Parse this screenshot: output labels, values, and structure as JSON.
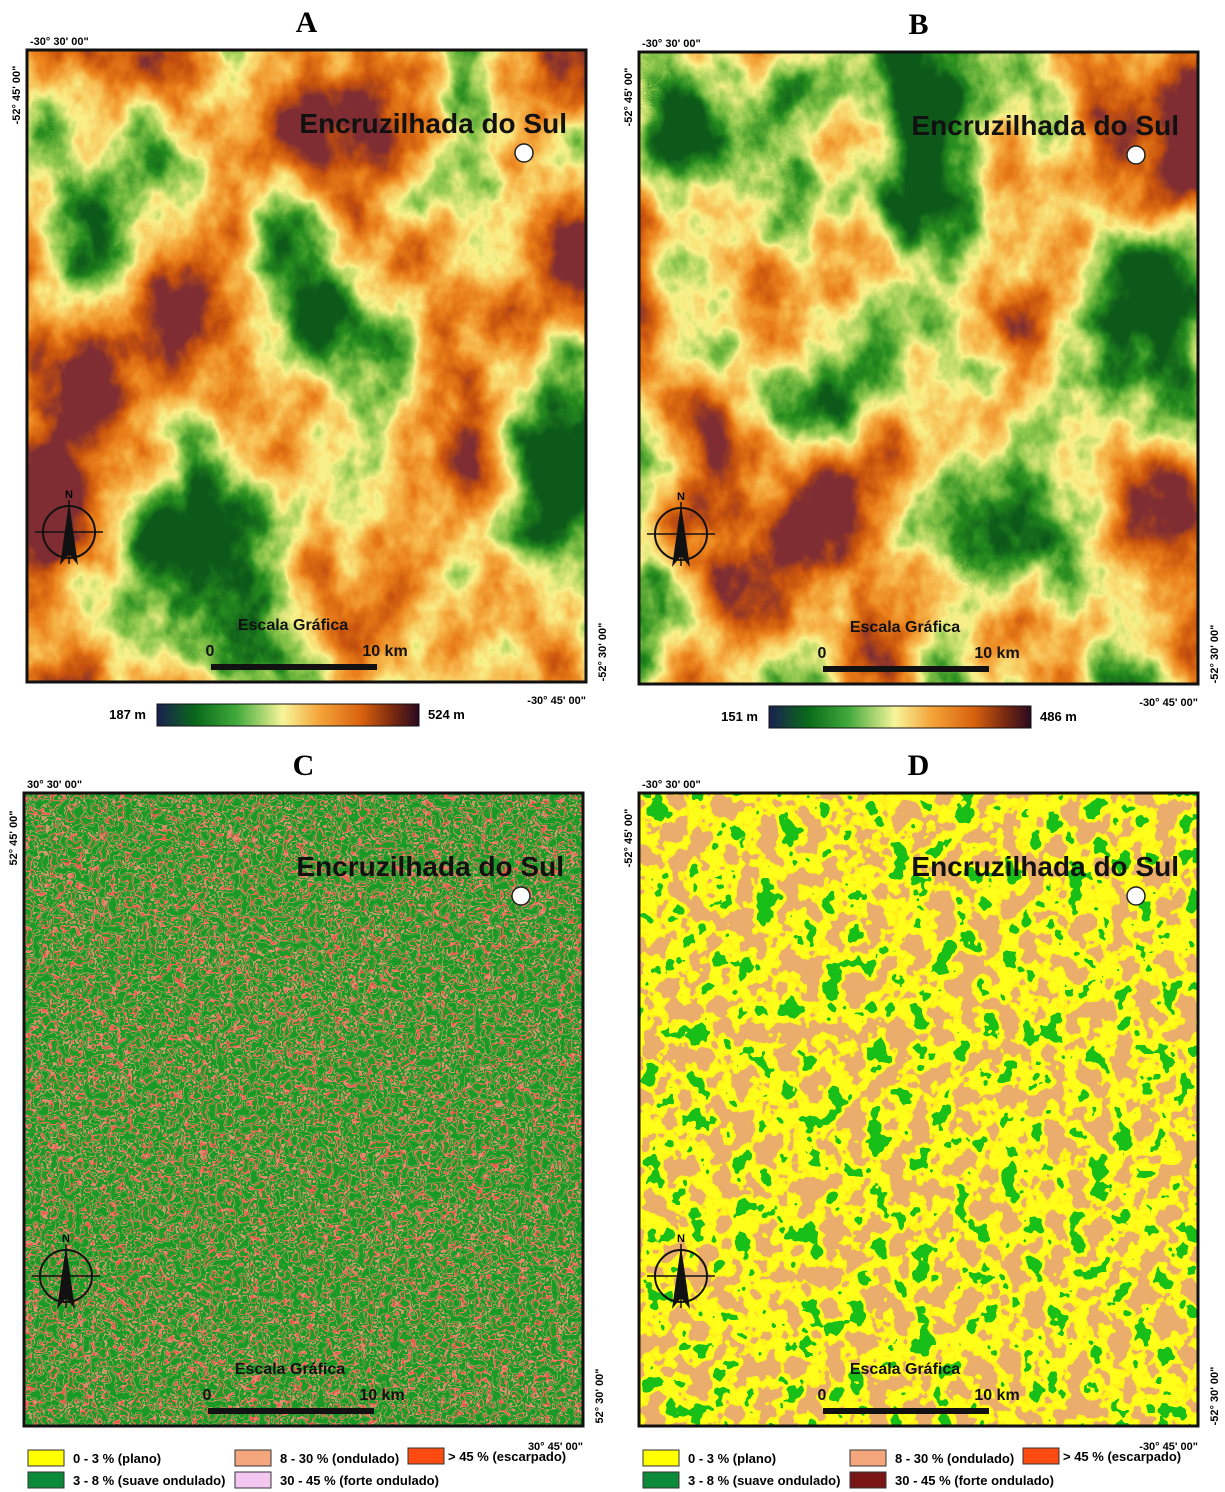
{
  "panels": [
    {
      "letter": "A",
      "kind": "elevation",
      "coord_top": "-30° 30' 00\"",
      "coord_left": "-52° 45' 00\"",
      "coord_right": "-52° 30' 00\"",
      "coord_bottom": "-30° 45' 00\"",
      "city": "Encruzilhada do Sul",
      "north": "N",
      "scale_title": "Escala Gráfica",
      "scale_start": "0",
      "scale_end": "10 km",
      "legend_min": "187 m",
      "legend_max": "524 m"
    },
    {
      "letter": "B",
      "kind": "elevation",
      "coord_top": "-30° 30' 00\"",
      "coord_left": "-52° 45' 00\"",
      "coord_right": "-52° 30' 00\"",
      "coord_bottom": "-30° 45' 00\"",
      "city": "Encruzilhada do Sul",
      "north": "N",
      "scale_title": "Escala Gráfica",
      "scale_start": "0",
      "scale_end": "10 km",
      "legend_min": "151 m",
      "legend_max": "486 m"
    },
    {
      "letter": "C",
      "kind": "slope_fine",
      "coord_top": "30° 30' 00\"",
      "coord_left": "52° 45' 00\"",
      "coord_right": "52° 30' 00\"",
      "coord_bottom": "30° 45' 00\"",
      "city": "Encruzilhada do Sul",
      "north": "N",
      "scale_title": "Escala Gráfica",
      "scale_start": "0",
      "scale_end": "10 km",
      "legend": [
        "0 - 3 % (plano)",
        "3 - 8 % (suave ondulado)",
        "8 - 30 % (ondulado)",
        "30 - 45 % (forte ondulado)",
        "> 45 % (escarpado)"
      ]
    },
    {
      "letter": "D",
      "kind": "slope_coarse",
      "coord_top": "-30° 30' 00\"",
      "coord_left": "-52° 45' 00\"",
      "coord_right": "-52° 30' 00\"",
      "coord_bottom": "-30° 45' 00\"",
      "city": "Encruzilhada do Sul",
      "north": "N",
      "scale_title": "Escala Gráfica",
      "scale_start": "0",
      "scale_end": "10 km",
      "legend": [
        "0 - 3 % (plano)",
        "3 - 8 % (suave ondulado)",
        "8 - 30 % (ondulado)",
        "30 - 45 % (forte ondulado)",
        "> 45 % (escarpado)"
      ]
    }
  ]
}
